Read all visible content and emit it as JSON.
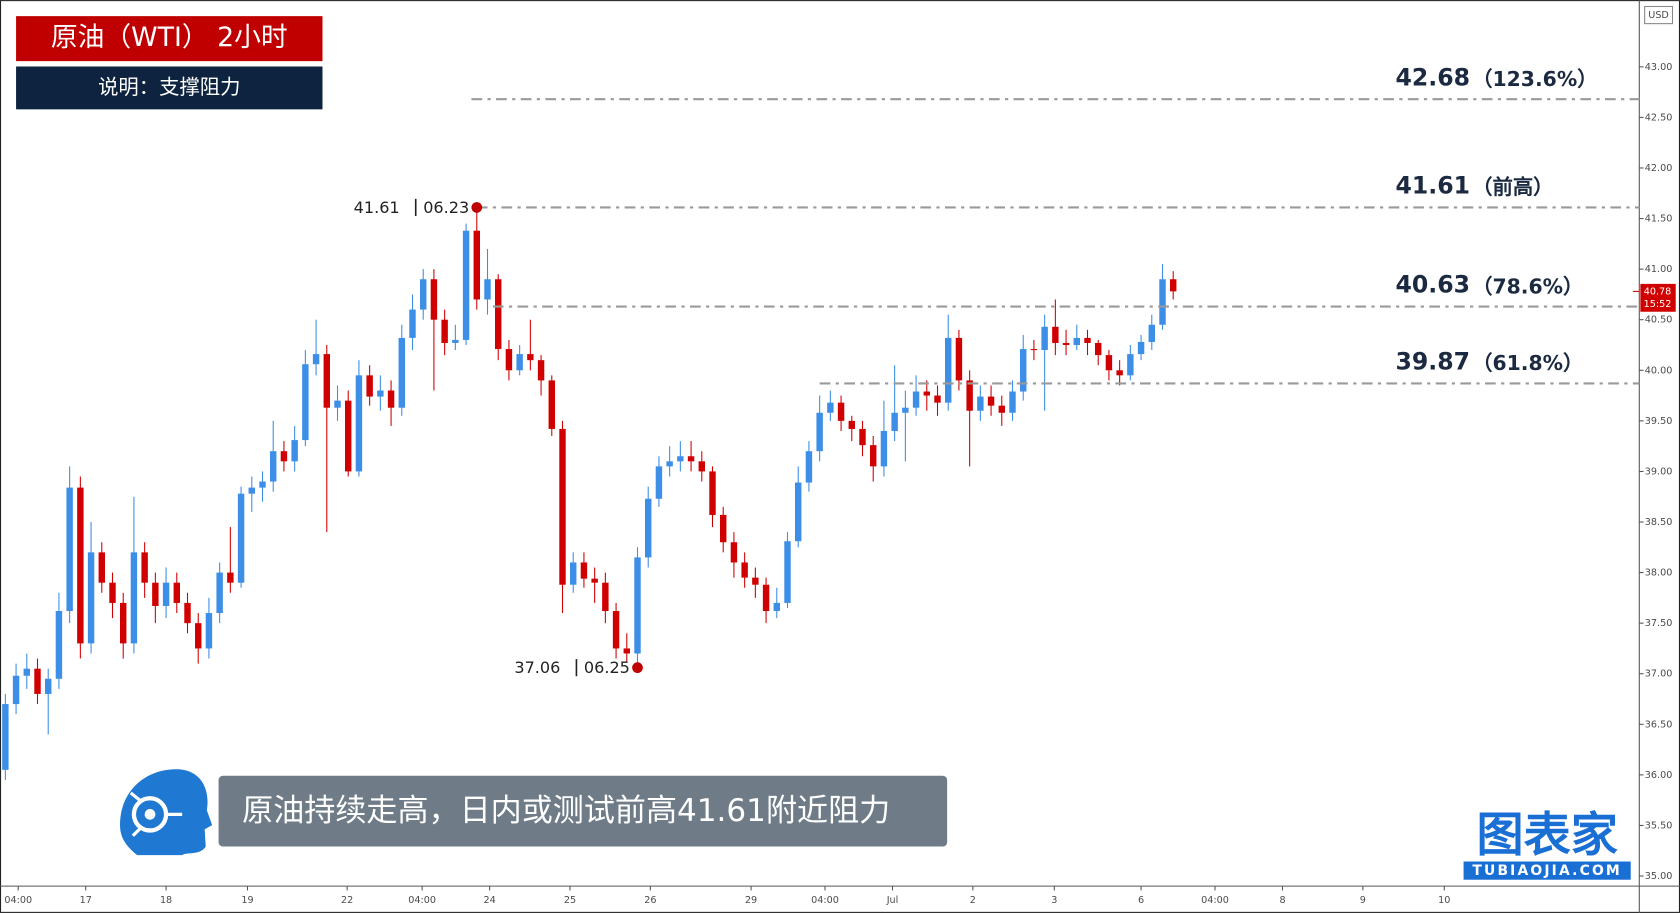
{
  "chart_data": {
    "type": "candlestick",
    "title": "原油（WTI） 2小时",
    "subtitle": "说明：支撑阻力",
    "caption": "原油持续走高，日内或测试前高41.61附近阻力",
    "currency": "USD",
    "logo": {
      "name": "图表家",
      "site": "TUBIAOJIA.COM"
    },
    "up_color": "#3c8ee6",
    "down_color": "#d10000",
    "open": [
      36.05,
      36.7,
      36.98,
      37.05,
      36.8,
      36.95,
      37.62,
      38.84,
      37.3,
      38.2,
      37.9,
      37.7,
      37.3,
      38.2,
      37.9,
      37.67,
      37.9,
      37.7,
      37.5,
      37.25,
      37.6,
      38.0,
      37.9,
      38.78,
      38.84,
      38.9,
      39.2,
      39.1,
      39.31,
      40.06,
      40.16,
      39.63,
      39.7,
      39.0,
      39.95,
      39.74,
      39.8,
      39.63,
      40.32,
      40.6,
      40.9,
      40.5,
      40.27,
      40.3,
      41.38,
      40.7,
      40.9,
      40.21,
      40.0,
      40.16,
      40.1,
      39.9,
      39.42,
      37.88,
      38.1,
      37.94,
      37.9,
      37.62,
      37.25,
      37.2,
      38.15,
      38.73,
      39.05,
      39.1,
      39.15,
      39.1,
      39.0,
      38.57,
      38.3,
      38.1,
      37.95,
      37.88,
      37.62,
      37.7,
      38.31,
      38.89,
      39.2,
      39.58,
      39.68,
      39.5,
      39.42,
      39.26,
      39.05,
      39.4,
      39.58,
      39.63,
      39.79,
      39.75,
      39.68,
      40.32,
      39.9,
      39.6,
      39.74,
      39.65,
      39.58,
      39.79,
      40.21,
      40.2,
      40.43,
      40.27,
      40.25,
      40.32,
      40.27,
      40.15,
      40.0,
      39.95,
      40.16,
      40.28,
      40.45,
      40.9
    ],
    "high": [
      36.8,
      37.1,
      37.2,
      37.15,
      37.05,
      37.8,
      39.05,
      38.95,
      38.5,
      38.3,
      38.0,
      37.8,
      38.75,
      38.3,
      38.0,
      38.05,
      38.0,
      37.8,
      37.6,
      37.75,
      38.1,
      38.45,
      38.85,
      38.95,
      39.0,
      39.5,
      39.3,
      39.45,
      40.2,
      40.5,
      40.25,
      39.85,
      39.8,
      40.1,
      40.05,
      39.95,
      39.9,
      40.45,
      40.75,
      41.0,
      41.0,
      40.6,
      40.45,
      41.45,
      41.61,
      41.2,
      40.95,
      40.3,
      40.25,
      40.5,
      40.15,
      39.95,
      39.5,
      38.2,
      38.2,
      38.05,
      38.0,
      37.7,
      37.4,
      38.25,
      38.85,
      39.15,
      39.25,
      39.3,
      39.3,
      39.2,
      39.05,
      38.65,
      38.4,
      38.2,
      38.05,
      37.95,
      37.85,
      38.4,
      39.05,
      39.3,
      39.75,
      39.8,
      39.75,
      39.55,
      39.5,
      39.35,
      39.7,
      40.05,
      39.8,
      39.95,
      39.9,
      39.85,
      40.55,
      40.4,
      40.0,
      39.85,
      39.85,
      39.75,
      39.9,
      40.35,
      40.3,
      40.55,
      40.7,
      40.4,
      40.45,
      40.4,
      40.3,
      40.2,
      40.1,
      40.25,
      40.35,
      40.55,
      41.05,
      40.98
    ],
    "low": [
      35.95,
      36.6,
      36.85,
      36.7,
      36.4,
      36.85,
      37.5,
      37.15,
      37.2,
      37.8,
      37.55,
      37.15,
      37.2,
      37.75,
      37.5,
      37.55,
      37.6,
      37.4,
      37.1,
      37.15,
      37.5,
      37.8,
      37.85,
      38.6,
      38.7,
      38.8,
      39.0,
      39.0,
      39.25,
      39.95,
      38.4,
      39.5,
      38.95,
      38.95,
      39.65,
      39.6,
      39.45,
      39.55,
      40.2,
      40.5,
      39.8,
      40.15,
      40.2,
      40.25,
      40.6,
      40.55,
      40.1,
      39.9,
      39.95,
      40.0,
      39.75,
      39.35,
      37.6,
      37.8,
      37.85,
      37.7,
      37.5,
      37.15,
      37.12,
      37.06,
      38.05,
      38.65,
      38.95,
      39.0,
      39.0,
      38.9,
      38.45,
      38.2,
      37.95,
      37.85,
      37.75,
      37.5,
      37.55,
      37.65,
      38.25,
      38.8,
      39.1,
      39.5,
      39.4,
      39.3,
      39.15,
      38.9,
      38.95,
      39.3,
      39.1,
      39.55,
      39.6,
      39.55,
      39.6,
      39.8,
      39.05,
      39.5,
      39.55,
      39.45,
      39.5,
      39.7,
      40.1,
      39.6,
      40.15,
      40.15,
      40.2,
      40.15,
      40.05,
      39.9,
      39.85,
      39.9,
      40.1,
      40.2,
      40.4,
      40.7
    ],
    "close": [
      36.7,
      36.98,
      37.05,
      36.8,
      36.95,
      37.62,
      38.84,
      37.3,
      38.2,
      37.9,
      37.7,
      37.3,
      38.2,
      37.9,
      37.67,
      37.9,
      37.7,
      37.5,
      37.25,
      37.6,
      38.0,
      37.9,
      38.78,
      38.84,
      38.9,
      39.2,
      39.1,
      39.31,
      40.06,
      40.16,
      39.63,
      39.7,
      39.0,
      39.95,
      39.74,
      39.8,
      39.63,
      40.32,
      40.6,
      40.9,
      40.5,
      40.27,
      40.3,
      41.38,
      40.7,
      40.9,
      40.21,
      40.0,
      40.16,
      40.1,
      39.9,
      39.42,
      37.88,
      38.1,
      37.94,
      37.9,
      37.62,
      37.25,
      37.2,
      38.15,
      38.73,
      39.05,
      39.1,
      39.15,
      39.1,
      39.0,
      38.57,
      38.3,
      38.1,
      37.95,
      37.88,
      37.62,
      37.7,
      38.31,
      38.89,
      39.2,
      39.58,
      39.68,
      39.5,
      39.42,
      39.26,
      39.05,
      39.4,
      39.58,
      39.63,
      39.79,
      39.75,
      39.68,
      40.32,
      39.9,
      39.6,
      39.74,
      39.65,
      39.58,
      39.79,
      40.21,
      40.2,
      40.43,
      40.27,
      40.25,
      40.32,
      40.27,
      40.15,
      40.0,
      39.95,
      40.16,
      40.28,
      40.45,
      40.9,
      40.78
    ],
    "xlim": [
      -0.5,
      152.5
    ],
    "xticks": [
      {
        "value": 1.2,
        "label": "04:00"
      },
      {
        "value": 7.5,
        "label": "17"
      },
      {
        "value": 15,
        "label": "18"
      },
      {
        "value": 22.6,
        "label": "19"
      },
      {
        "value": 31.9,
        "label": "22"
      },
      {
        "value": 38.9,
        "label": "04:00"
      },
      {
        "value": 45.2,
        "label": "24"
      },
      {
        "value": 52.7,
        "label": "25"
      },
      {
        "value": 60.2,
        "label": "26"
      },
      {
        "value": 69.6,
        "label": "29"
      },
      {
        "value": 76.5,
        "label": "04:00"
      },
      {
        "value": 82.8,
        "label": "Jul"
      },
      {
        "value": 90.3,
        "label": "2"
      },
      {
        "value": 97.9,
        "label": "3"
      },
      {
        "value": 106,
        "label": "6"
      },
      {
        "value": 112.9,
        "label": "04:00"
      },
      {
        "value": 119.2,
        "label": "8"
      },
      {
        "value": 126.7,
        "label": "9"
      },
      {
        "value": 134.3,
        "label": "10"
      }
    ],
    "ylim": [
      34.9,
      43.66
    ],
    "yticks": [
      {
        "value": 35,
        "label": "35.00"
      },
      {
        "value": 35.5,
        "label": "35.50"
      },
      {
        "value": 36,
        "label": "36.00"
      },
      {
        "value": 36.5,
        "label": "36.50"
      },
      {
        "value": 37,
        "label": "37.00"
      },
      {
        "value": 37.5,
        "label": "37.50"
      },
      {
        "value": 38,
        "label": "38.00"
      },
      {
        "value": 38.5,
        "label": "38.50"
      },
      {
        "value": 39,
        "label": "39.00"
      },
      {
        "value": 39.5,
        "label": "39.50"
      },
      {
        "value": 40,
        "label": "40.00"
      },
      {
        "value": 40.5,
        "label": "40.50"
      },
      {
        "value": 41,
        "label": "41.00"
      },
      {
        "value": 41.5,
        "label": "41.50"
      },
      {
        "value": 42,
        "label": "42.00"
      },
      {
        "value": 42.5,
        "label": "42.50"
      },
      {
        "value": 43,
        "label": "43.00"
      }
    ],
    "levels": [
      {
        "value": 42.68,
        "note": "（123.6%）"
      },
      {
        "value": 41.61,
        "note": "（前高）"
      },
      {
        "value": 40.63,
        "note": "（78.6%）"
      },
      {
        "value": 39.87,
        "note": "（61.8%）"
      }
    ],
    "extremes": [
      {
        "kind": "high",
        "value": 41.61,
        "date": "06.23"
      },
      {
        "kind": "low",
        "value": 37.06,
        "date": "06.25"
      }
    ],
    "last_price": {
      "value": 40.78,
      "countdown": "15:52"
    }
  }
}
